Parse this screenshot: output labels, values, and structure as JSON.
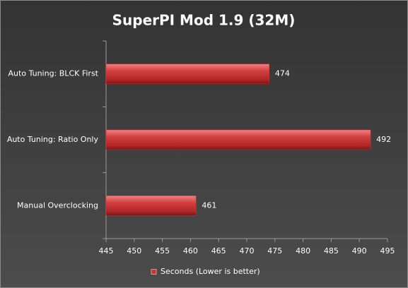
{
  "chart_data": {
    "type": "bar",
    "title": "SuperPI Mod 1.9 (32M)",
    "categories": [
      "Auto Tuning:  BLCK First",
      "Auto Tuning:  Ratio Only",
      "Manual Overclocking"
    ],
    "series": [
      {
        "name": "Seconds (Lower is better)",
        "color": "#c83232",
        "values": [
          474,
          492,
          461
        ]
      }
    ],
    "xlim": [
      445,
      495
    ],
    "xticks": [
      445,
      450,
      455,
      460,
      465,
      470,
      475,
      480,
      485,
      490,
      495
    ],
    "grid": false,
    "legend": "bottom"
  }
}
